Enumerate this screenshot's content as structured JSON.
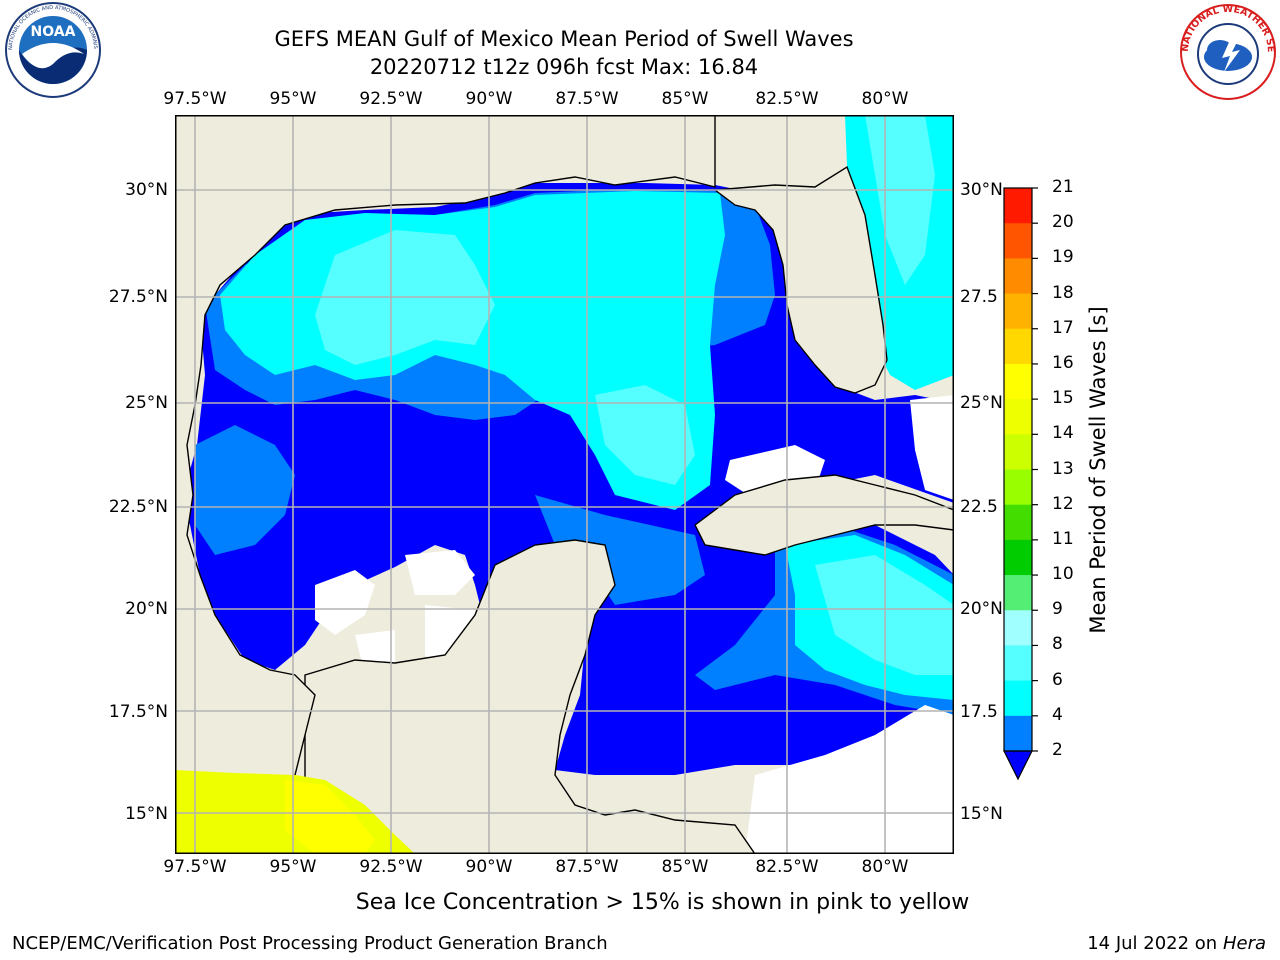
{
  "header": {
    "title_line1": "GEFS MEAN Gulf of Mexico Mean Period of Swell Waves",
    "title_line2": "20220712 t12z 096h fcst   Max: 16.84"
  },
  "logos": {
    "left": "NOAA",
    "left_ring": "NATIONAL OCEANIC AND ATMOSPHERIC ADMINISTRATION · U.S. DEPARTMENT OF COMMERCE",
    "right": "NATIONAL WEATHER SERVICE"
  },
  "map": {
    "lon_labels": [
      "97.5°W",
      "95°W",
      "92.5°W",
      "90°W",
      "87.5°W",
      "85°W",
      "82.5°W",
      "80°W"
    ],
    "lat_labels_left": [
      "30°N",
      "27.5°N",
      "25°N",
      "22.5°N",
      "20°N",
      "17.5°N",
      "15°N"
    ],
    "lat_labels_right": [
      "30°N",
      "27.5",
      "25°N",
      "22.5",
      "20°N",
      "17.5",
      "15°N"
    ],
    "colors": {
      "land": "#eeecdc",
      "ocean_white": "#ffffff",
      "grid": "#b4b4b4",
      "coast": "#000000"
    }
  },
  "chart_data": {
    "type": "heatmap",
    "title": "GEFS MEAN Gulf of Mexico Mean Period of Swell Waves",
    "subtitle": "20220712 t12z 096h fcst   Max: 16.84",
    "max_value": 16.84,
    "colorbar": {
      "label": "Mean Period of Swell Waves [s]",
      "ticks": [
        "2",
        "4",
        "6",
        "8",
        "9",
        "10",
        "11",
        "12",
        "13",
        "14",
        "15",
        "16",
        "17",
        "18",
        "19",
        "20",
        "21"
      ],
      "levels": [
        2,
        4,
        6,
        8,
        9,
        10,
        11,
        12,
        13,
        14,
        15,
        16,
        17,
        18,
        19,
        20,
        21
      ],
      "colors": [
        "#0000ff",
        "#007fff",
        "#00ffff",
        "#55ffff",
        "#a0ffff",
        "#55ee75",
        "#00cc00",
        "#44dd00",
        "#99ff00",
        "#ccff00",
        "#eeff00",
        "#ffff00",
        "#ffd800",
        "#ffb300",
        "#ff8c00",
        "#ff5400",
        "#ff1a00",
        "#ff0000"
      ],
      "extend": "min"
    },
    "lon_range": [
      -98.5,
      -78.6
    ],
    "lat_range": [
      14,
      31.9
    ]
  },
  "caption": "Sea Ice Concentration > 15% is shown in pink to yellow",
  "footer": {
    "left": "NCEP/EMC/Verification Post Processing Product Generation Branch",
    "right_date": "14 Jul 2022 on ",
    "right_host": "Hera"
  }
}
